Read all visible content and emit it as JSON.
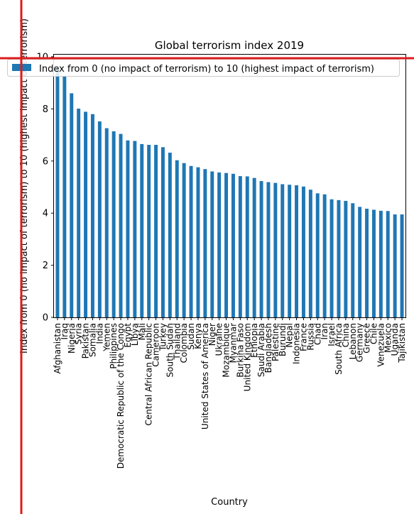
{
  "chart_data": {
    "type": "bar",
    "title": "Global terrorism index 2019",
    "xlabel": "Country",
    "ylabel": "Index from 0 (no impact of terrorism) to 10 (highest impact of terrorism)",
    "ylim": [
      0,
      10
    ],
    "yticks": [
      0,
      2,
      4,
      6,
      8,
      10
    ],
    "grid": false,
    "legend": {
      "placement": "top",
      "label": "Index from 0 (no impact of terrorism) to 10 (highest impact of terrorism)"
    },
    "bar_color": "#1f77b4",
    "categories": [
      "Afghanistan",
      "Iraq",
      "Nigeria",
      "Syria",
      "Pakistan",
      "Somalia",
      "India",
      "Yemen",
      "Philippines",
      "Democratic Republic of the Congo",
      "Egypt",
      "Libya",
      "Mali",
      "Central African Republic",
      "Cameroon",
      "Turkey",
      "South Sudan",
      "Thailand",
      "Colombia",
      "Sudan",
      "Kenya",
      "United States of America",
      "Niger",
      "Ukraine",
      "Mozambique",
      "Myanmar",
      "Burkina Faso",
      "United Kingdom",
      "Ethiopia",
      "Saudi Arabia",
      "Bangladesh",
      "Palestine",
      "Burundi",
      "Nepal",
      "Indonesia",
      "France",
      "Russia",
      "Chad",
      "Iran",
      "Israel",
      "South Africa",
      "China",
      "Lebanon",
      "Germany",
      "Greece",
      "Chile",
      "Venezuela",
      "Mexico",
      "Uganda",
      "Tajikistan"
    ],
    "values": [
      9.6,
      9.24,
      8.6,
      8.01,
      7.89,
      7.8,
      7.52,
      7.26,
      7.14,
      7.04,
      6.79,
      6.77,
      6.65,
      6.62,
      6.62,
      6.53,
      6.32,
      6.03,
      5.92,
      5.81,
      5.76,
      5.69,
      5.6,
      5.56,
      5.54,
      5.51,
      5.42,
      5.41,
      5.35,
      5.23,
      5.19,
      5.16,
      5.11,
      5.09,
      5.07,
      5.02,
      4.9,
      4.76,
      4.72,
      4.53,
      4.5,
      4.47,
      4.38,
      4.24,
      4.17,
      4.13,
      4.09,
      4.08,
      3.95,
      3.95
    ]
  }
}
